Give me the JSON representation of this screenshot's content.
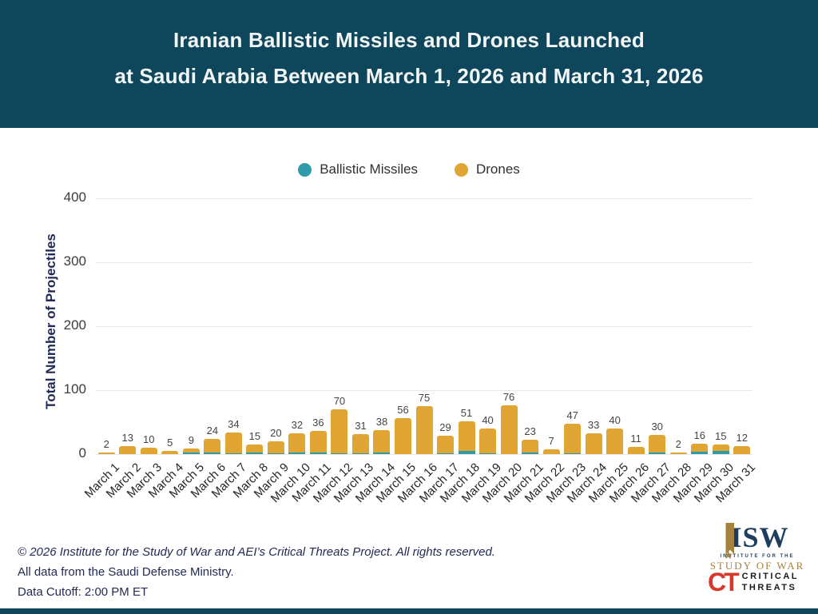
{
  "header": {
    "title_line1": "Iranian Ballistic Missiles and Drones Launched",
    "title_line2": "at Saudi Arabia Between March 1, 2026 and March 31, 2026"
  },
  "legend": [
    {
      "label": "Ballistic Missiles",
      "color": "#2e9ca8"
    },
    {
      "label": "Drones",
      "color": "#e0a532"
    }
  ],
  "chart_data": {
    "type": "bar",
    "stacked": true,
    "title": "Iranian Ballistic Missiles and Drones Launched at Saudi Arabia Between March 1, 2026 and March 31, 2026",
    "xlabel": "",
    "ylabel": "Total Number of Projectiles",
    "ylim": [
      0,
      400
    ],
    "yticks": [
      0,
      100,
      200,
      300,
      400
    ],
    "grid": true,
    "legend_position": "top",
    "categories": [
      "March 1",
      "March 2",
      "March 3",
      "March 4",
      "March 5",
      "March 6",
      "March 7",
      "March 8",
      "March 9",
      "March 10",
      "March 11",
      "March 12",
      "March 13",
      "March 14",
      "March 15",
      "March 16",
      "March 17",
      "March 18",
      "March 19",
      "March 20",
      "March 21",
      "March 22",
      "March 23",
      "March 24",
      "March 25",
      "March 26",
      "March 27",
      "March 28",
      "March 29",
      "March 30",
      "March 31"
    ],
    "totals": [
      2,
      13,
      10,
      5,
      9,
      24,
      34,
      15,
      20,
      32,
      36,
      70,
      31,
      38,
      56,
      75,
      29,
      51,
      40,
      76,
      23,
      7,
      47,
      33,
      40,
      11,
      30,
      2,
      16,
      15,
      12
    ],
    "series": [
      {
        "name": "Ballistic Missiles",
        "color": "#2e9ca8",
        "values": [
          0,
          0,
          0,
          0,
          2,
          2,
          1,
          2,
          1,
          3,
          2,
          1,
          1,
          3,
          0,
          0,
          1,
          5,
          1,
          0,
          2,
          0,
          1,
          0,
          0,
          0,
          3,
          0,
          4,
          5,
          0
        ]
      },
      {
        "name": "Drones",
        "color": "#e0a532",
        "values": [
          2,
          13,
          10,
          5,
          7,
          22,
          33,
          13,
          19,
          29,
          34,
          69,
          30,
          35,
          56,
          75,
          28,
          46,
          39,
          76,
          21,
          7,
          46,
          33,
          40,
          11,
          27,
          2,
          12,
          10,
          12
        ]
      }
    ]
  },
  "footer": {
    "line1": "© 2026 Institute for the Study of War and AEI’s Critical Threats Project. All rights reserved.",
    "line2": "All data from the Saudi Defense Ministry.",
    "line3": "Data Cutoff: 2:00 PM ET"
  },
  "logos": {
    "isw": {
      "acronym": "ISW",
      "sub1": "INSTITUTE FOR THE",
      "sub2": "STUDY OF WAR"
    },
    "ct": {
      "monogram": "CT",
      "line1": "CRITICAL",
      "line2": "THREATS"
    }
  },
  "colors": {
    "header_bg": "#0e465c",
    "missiles_teal": "#2e9ca8",
    "drones_gold": "#e0a532",
    "text_navy": "#232a55",
    "tick_gray": "#3d3d3d",
    "gridline": "#e8e8e8",
    "ct_red": "#d6392c",
    "isw_navy": "#1d3e5e",
    "isw_gold": "#a5833f"
  }
}
